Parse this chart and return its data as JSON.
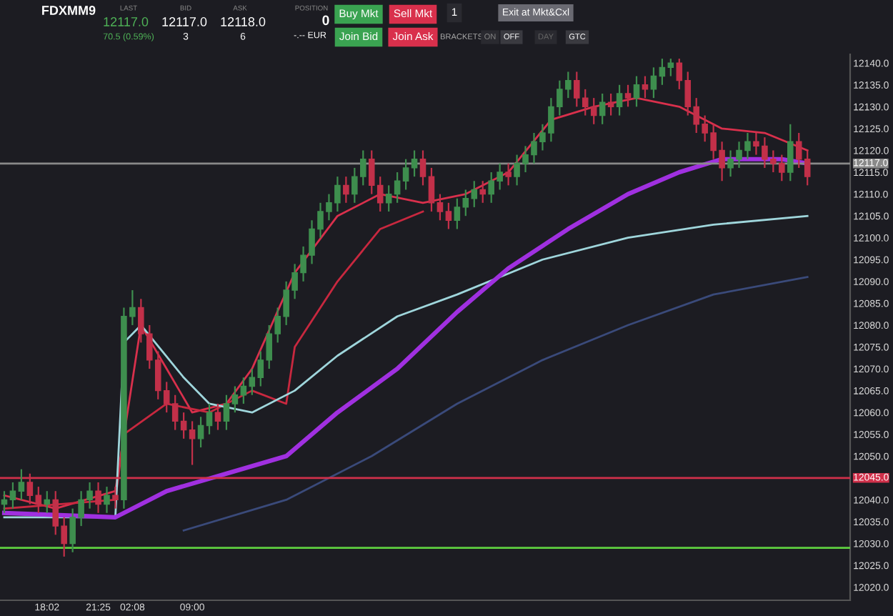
{
  "chart_data": {
    "type": "candlestick",
    "categories": [
      null,
      null,
      null,
      null,
      null,
      "18:02",
      null,
      null,
      null,
      null,
      null,
      "21:25",
      null,
      null,
      null,
      "02:08",
      null,
      null,
      null,
      null,
      null,
      null,
      "09:00",
      null,
      null,
      null,
      null,
      null,
      null,
      null,
      null,
      null,
      null,
      null,
      null,
      null,
      null,
      null,
      null,
      null,
      null,
      null,
      null,
      null,
      null,
      null,
      null,
      null,
      null,
      null,
      null,
      null,
      null,
      null,
      null,
      null,
      null,
      null,
      null,
      null,
      null,
      null,
      null,
      null,
      null,
      null,
      null,
      null,
      null,
      null,
      null,
      null,
      null,
      null,
      null,
      null,
      null,
      null,
      null,
      null,
      null,
      null,
      null,
      null,
      null,
      null,
      null,
      null,
      null,
      null,
      null,
      null,
      null,
      null,
      null
    ],
    "ohlc": [
      [
        12039,
        12042,
        12037,
        12040
      ],
      [
        12040,
        12044,
        12038,
        12042
      ],
      [
        12042,
        12047,
        12040,
        12044
      ],
      [
        12044,
        12046,
        12039,
        12041
      ],
      [
        12041,
        12043,
        12037,
        12039
      ],
      [
        12039,
        12042,
        12037,
        12040
      ],
      [
        12040,
        12042,
        12032,
        12034
      ],
      [
        12034,
        12036,
        12027,
        12030
      ],
      [
        12030,
        12038,
        12028,
        12036
      ],
      [
        12036,
        12042,
        12034,
        12040
      ],
      [
        12040,
        12044,
        12038,
        12042
      ],
      [
        12042,
        12044,
        12037,
        12039
      ],
      [
        12039,
        12043,
        12037,
        12041
      ],
      [
        12041,
        12043,
        12038,
        12040
      ],
      [
        12040,
        12084,
        12038,
        12082
      ],
      [
        12082,
        12088,
        12080,
        12084
      ],
      [
        12084,
        12086,
        12076,
        12078
      ],
      [
        12078,
        12080,
        12070,
        12072
      ],
      [
        12072,
        12074,
        12063,
        12065
      ],
      [
        12065,
        12067,
        12060,
        12062
      ],
      [
        12062,
        12064,
        12056,
        12058
      ],
      [
        12058,
        12060,
        12054,
        12056
      ],
      [
        12056,
        12058,
        12048,
        12054
      ],
      [
        12054,
        12059,
        12052,
        12057
      ],
      [
        12057,
        12062,
        12055,
        12060
      ],
      [
        12060,
        12062,
        12056,
        12058
      ],
      [
        12058,
        12064,
        12056,
        12062
      ],
      [
        12062,
        12066,
        12060,
        12064
      ],
      [
        12064,
        12068,
        12062,
        12066
      ],
      [
        12066,
        12070,
        12064,
        12068
      ],
      [
        12068,
        12074,
        12066,
        12072
      ],
      [
        12072,
        12080,
        12070,
        12078
      ],
      [
        12078,
        12084,
        12076,
        12082
      ],
      [
        12082,
        12090,
        12080,
        12088
      ],
      [
        12088,
        12094,
        12086,
        12092
      ],
      [
        12092,
        12098,
        12090,
        12096
      ],
      [
        12096,
        12104,
        12094,
        12102
      ],
      [
        12102,
        12108,
        12100,
        12106
      ],
      [
        12106,
        12110,
        12104,
        12108
      ],
      [
        12108,
        12114,
        12106,
        12112
      ],
      [
        12112,
        12114,
        12108,
        12110
      ],
      [
        12110,
        12116,
        12108,
        12114
      ],
      [
        12114,
        12120,
        12112,
        12118
      ],
      [
        12118,
        12120,
        12110,
        12112
      ],
      [
        12112,
        12114,
        12106,
        12108
      ],
      [
        12108,
        12112,
        12106,
        12110
      ],
      [
        12110,
        12115,
        12108,
        12113
      ],
      [
        12113,
        12118,
        12111,
        12116
      ],
      [
        12116,
        12120,
        12114,
        12118
      ],
      [
        12118,
        12120,
        12112,
        12114
      ],
      [
        12114,
        12116,
        12106,
        12108
      ],
      [
        12108,
        12110,
        12104,
        12106
      ],
      [
        12106,
        12108,
        12102,
        12104
      ],
      [
        12104,
        12109,
        12102,
        12107
      ],
      [
        12107,
        12111,
        12105,
        12109
      ],
      [
        12109,
        12113,
        12107,
        12111
      ],
      [
        12111,
        12113,
        12108,
        12110
      ],
      [
        12110,
        12115,
        12108,
        12113
      ],
      [
        12113,
        12117,
        12111,
        12115
      ],
      [
        12115,
        12117,
        12112,
        12114
      ],
      [
        12114,
        12119,
        12112,
        12117
      ],
      [
        12117,
        12121,
        12115,
        12119
      ],
      [
        12119,
        12124,
        12117,
        12122
      ],
      [
        12122,
        12126,
        12120,
        12124
      ],
      [
        12124,
        12132,
        12122,
        12130
      ],
      [
        12130,
        12136,
        12128,
        12134
      ],
      [
        12134,
        12138,
        12132,
        12136
      ],
      [
        12136,
        12138,
        12130,
        12132
      ],
      [
        12132,
        12134,
        12128,
        12130
      ],
      [
        12130,
        12132,
        12126,
        12128
      ],
      [
        12128,
        12133,
        12126,
        12131
      ],
      [
        12131,
        12133,
        12128,
        12130
      ],
      [
        12130,
        12135,
        12128,
        12133
      ],
      [
        12133,
        12135,
        12130,
        12132
      ],
      [
        12132,
        12137,
        12130,
        12135
      ],
      [
        12135,
        12137,
        12132,
        12134
      ],
      [
        12134,
        12139,
        12132,
        12137
      ],
      [
        12137,
        12141,
        12135,
        12139
      ],
      [
        12139,
        12141,
        12137,
        12140
      ],
      [
        12140,
        12141,
        12134,
        12136
      ],
      [
        12136,
        12138,
        12128,
        12130
      ],
      [
        12130,
        12132,
        12124,
        12126
      ],
      [
        12126,
        12128,
        12122,
        12124
      ],
      [
        12124,
        12126,
        12118,
        12120
      ],
      [
        12120,
        12122,
        12113,
        12116
      ],
      [
        12116,
        12120,
        12114,
        12118
      ],
      [
        12118,
        12122,
        12116,
        12120
      ],
      [
        12120,
        12124,
        12118,
        12122
      ],
      [
        12122,
        12124,
        12119,
        12121
      ],
      [
        12121,
        12123,
        12116,
        12118
      ],
      [
        12118,
        12120,
        12115,
        12117
      ],
      [
        12117,
        12119,
        12113,
        12115
      ],
      [
        12115,
        12126,
        12113,
        12122
      ],
      [
        12122,
        12124,
        12116,
        12118
      ],
      [
        12118,
        12120,
        12112,
        12114
      ]
    ],
    "colors": [
      "#3e8e4e",
      "#3e8e4e",
      "#3e8e4e",
      "#c23049",
      "#c23049",
      "#3e8e4e",
      "#c23049",
      "#c23049",
      "#3e8e4e",
      "#3e8e4e",
      "#3e8e4e",
      "#c23049",
      "#3e8e4e",
      "#c23049",
      "#3e8e4e",
      "#3e8e4e",
      "#c23049",
      "#c23049",
      "#c23049",
      "#c23049",
      "#c23049",
      "#c23049",
      "#c23049",
      "#3e8e4e",
      "#3e8e4e",
      "#c23049",
      "#3e8e4e",
      "#3e8e4e",
      "#3e8e4e",
      "#3e8e4e",
      "#3e8e4e",
      "#3e8e4e",
      "#3e8e4e",
      "#3e8e4e",
      "#3e8e4e",
      "#3e8e4e",
      "#3e8e4e",
      "#3e8e4e",
      "#3e8e4e",
      "#3e8e4e",
      "#c23049",
      "#3e8e4e",
      "#3e8e4e",
      "#c23049",
      "#c23049",
      "#3e8e4e",
      "#3e8e4e",
      "#3e8e4e",
      "#3e8e4e",
      "#c23049",
      "#c23049",
      "#c23049",
      "#c23049",
      "#3e8e4e",
      "#3e8e4e",
      "#3e8e4e",
      "#c23049",
      "#3e8e4e",
      "#3e8e4e",
      "#c23049",
      "#3e8e4e",
      "#3e8e4e",
      "#3e8e4e",
      "#3e8e4e",
      "#3e8e4e",
      "#3e8e4e",
      "#3e8e4e",
      "#c23049",
      "#c23049",
      "#c23049",
      "#3e8e4e",
      "#c23049",
      "#3e8e4e",
      "#c23049",
      "#3e8e4e",
      "#c23049",
      "#3e8e4e",
      "#3e8e4e",
      "#3e8e4e",
      "#c23049",
      "#c23049",
      "#c23049",
      "#c23049",
      "#c23049",
      "#c23049",
      "#3e8e4e",
      "#3e8e4e",
      "#3e8e4e",
      "#c23049",
      "#c23049",
      "#c23049",
      "#c23049",
      "#3e8e4e",
      "#c23049",
      "#c23049"
    ],
    "series": [
      {
        "type": "line",
        "color": "#d9304c",
        "values": [
          12041,
          null,
          null,
          null,
          null,
          null,
          12038,
          null,
          null,
          null,
          null,
          null,
          null,
          12042,
          null,
          null,
          12080,
          null,
          null,
          12070,
          null,
          null,
          12060,
          null,
          null,
          null,
          12062,
          null,
          null,
          12070,
          null,
          null,
          null,
          null,
          12092,
          null,
          null,
          null,
          null,
          12105,
          null,
          null,
          null,
          null,
          12110,
          null,
          null,
          null,
          null,
          12108,
          null,
          null,
          null,
          null,
          12110,
          null,
          null,
          null,
          null,
          12115,
          null,
          null,
          null,
          null,
          12127,
          null,
          null,
          null,
          null,
          12130,
          null,
          null,
          null,
          null,
          12132,
          null,
          null,
          null,
          null,
          12130,
          null,
          null,
          null,
          null,
          12125,
          null,
          null,
          null,
          null,
          12124,
          null,
          null,
          null,
          null,
          12120
        ]
      },
      {
        "type": "line",
        "color": "#c8283f",
        "values": [
          12038,
          null,
          null,
          null,
          null,
          null,
          null,
          null,
          null,
          null,
          null,
          null,
          null,
          12040,
          12055,
          null,
          null,
          null,
          null,
          12062,
          null,
          null,
          null,
          null,
          12060,
          null,
          null,
          null,
          null,
          12065,
          null,
          null,
          null,
          12062,
          12075,
          null,
          null,
          null,
          null,
          12090,
          null,
          null,
          null,
          null,
          12102,
          null,
          null,
          null,
          null,
          12106,
          null,
          null,
          null,
          null,
          null,
          null,
          null,
          null,
          null,
          null,
          null,
          null,
          null,
          null,
          null,
          null,
          null,
          null,
          null,
          null,
          null,
          null,
          null,
          null,
          null,
          null,
          null,
          null,
          null,
          null,
          null,
          null,
          null,
          null,
          null,
          null,
          null,
          null,
          null,
          null,
          null,
          null,
          null,
          null,
          null
        ]
      },
      {
        "type": "line",
        "color": "#9fd6dc",
        "values": [
          12036,
          null,
          null,
          null,
          null,
          null,
          null,
          null,
          null,
          null,
          null,
          null,
          null,
          12036,
          12076,
          null,
          12080,
          null,
          null,
          null,
          null,
          12068,
          null,
          null,
          12062,
          null,
          null,
          null,
          null,
          12060,
          null,
          null,
          null,
          null,
          12065,
          null,
          null,
          null,
          null,
          12073,
          null,
          null,
          null,
          null,
          null,
          null,
          12082,
          null,
          null,
          null,
          null,
          null,
          null,
          12087,
          null,
          null,
          null,
          null,
          null,
          null,
          null,
          null,
          null,
          12095,
          null,
          null,
          null,
          null,
          null,
          null,
          null,
          null,
          null,
          12100,
          null,
          null,
          null,
          null,
          null,
          null,
          null,
          null,
          null,
          12103,
          null,
          null,
          null,
          null,
          null,
          null,
          null,
          null,
          null,
          null,
          12105
        ]
      },
      {
        "type": "line",
        "color": "#a030e0",
        "values": [
          12037,
          null,
          null,
          null,
          null,
          null,
          null,
          null,
          null,
          null,
          null,
          null,
          null,
          12036,
          null,
          null,
          null,
          null,
          null,
          12042,
          null,
          null,
          null,
          null,
          null,
          null,
          12046,
          null,
          null,
          null,
          null,
          null,
          null,
          12050,
          null,
          null,
          null,
          null,
          null,
          12060,
          null,
          null,
          null,
          null,
          null,
          null,
          12070,
          null,
          null,
          null,
          null,
          null,
          null,
          12083,
          null,
          null,
          null,
          null,
          null,
          12093,
          null,
          null,
          null,
          null,
          null,
          null,
          12102,
          null,
          null,
          null,
          null,
          null,
          null,
          12110,
          null,
          null,
          null,
          null,
          null,
          12115,
          null,
          null,
          null,
          null,
          12118,
          null,
          null,
          null,
          null,
          null,
          null,
          12118,
          null,
          null,
          12117
        ]
      },
      {
        "type": "line",
        "color": "#3a4a7a",
        "values": [
          null,
          null,
          null,
          null,
          null,
          null,
          null,
          null,
          null,
          null,
          null,
          null,
          null,
          null,
          null,
          null,
          null,
          null,
          null,
          null,
          null,
          12033,
          null,
          null,
          null,
          null,
          null,
          null,
          null,
          null,
          null,
          null,
          null,
          12040,
          null,
          null,
          null,
          null,
          null,
          null,
          null,
          null,
          null,
          12050,
          null,
          null,
          null,
          null,
          null,
          null,
          null,
          null,
          null,
          12062,
          null,
          null,
          null,
          null,
          null,
          null,
          null,
          null,
          null,
          12072,
          null,
          null,
          null,
          null,
          null,
          null,
          null,
          null,
          null,
          12080,
          null,
          null,
          null,
          null,
          null,
          null,
          null,
          null,
          null,
          12087,
          null,
          null,
          null,
          null,
          null,
          null,
          null,
          null,
          null,
          null,
          12091
        ]
      }
    ],
    "ylim": [
      12017,
      12142
    ],
    "yticks": [
      {
        "value": 12020,
        "label": "12020.0"
      },
      {
        "value": 12025,
        "label": "12025.0"
      },
      {
        "value": 12030,
        "label": "12030.0"
      },
      {
        "value": 12035,
        "label": "12035.0"
      },
      {
        "value": 12040,
        "label": "12040.0"
      },
      {
        "value": 12050,
        "label": "12050.0"
      },
      {
        "value": 12055,
        "label": "12055.0"
      },
      {
        "value": 12060,
        "label": "12060.0"
      },
      {
        "value": 12065,
        "label": "12065.0"
      },
      {
        "value": 12070,
        "label": "12070.0"
      },
      {
        "value": 12075,
        "label": "12075.0"
      },
      {
        "value": 12080,
        "label": "12080.0"
      },
      {
        "value": 12085,
        "label": "12085.0"
      },
      {
        "value": 12090,
        "label": "12090.0"
      },
      {
        "value": 12095,
        "label": "12095.0"
      },
      {
        "value": 12100,
        "label": "12100.0"
      },
      {
        "value": 12105,
        "label": "12105.0"
      },
      {
        "value": 12110,
        "label": "12110.0"
      },
      {
        "value": 12115,
        "label": "12115.0"
      },
      {
        "value": 12120,
        "label": "12120.0"
      },
      {
        "value": 12125,
        "label": "12125.0"
      },
      {
        "value": 12130,
        "label": "12130.0"
      },
      {
        "value": 12135,
        "label": "12135.0"
      },
      {
        "value": 12140,
        "label": "12140.0"
      }
    ],
    "ref_lines": [
      {
        "axis": "y",
        "value": 12117,
        "label": "12117.0",
        "color": "#8a8a8a"
      },
      {
        "axis": "y",
        "value": 12045,
        "label": "12045.0",
        "color": "#d0304a"
      },
      {
        "axis": "y",
        "value": 12029,
        "color": "#5fd040"
      }
    ],
    "grid": false,
    "legend": false,
    "annotations": [
      "FDXMM9",
      "LAST",
      "12117.0",
      "70.5 (0.59%)",
      "BID",
      "12117.0",
      "3",
      "ASK",
      "12118.0",
      "6",
      "POSITION",
      "0",
      "-.-- EUR",
      "Buy Mkt",
      "Sell Mkt",
      "Join Bid",
      "Join Ask",
      "1",
      "Exit at Mkt&Cxl",
      "BRACKETS",
      "ON",
      "OFF",
      "DAY",
      "GTC"
    ]
  }
}
